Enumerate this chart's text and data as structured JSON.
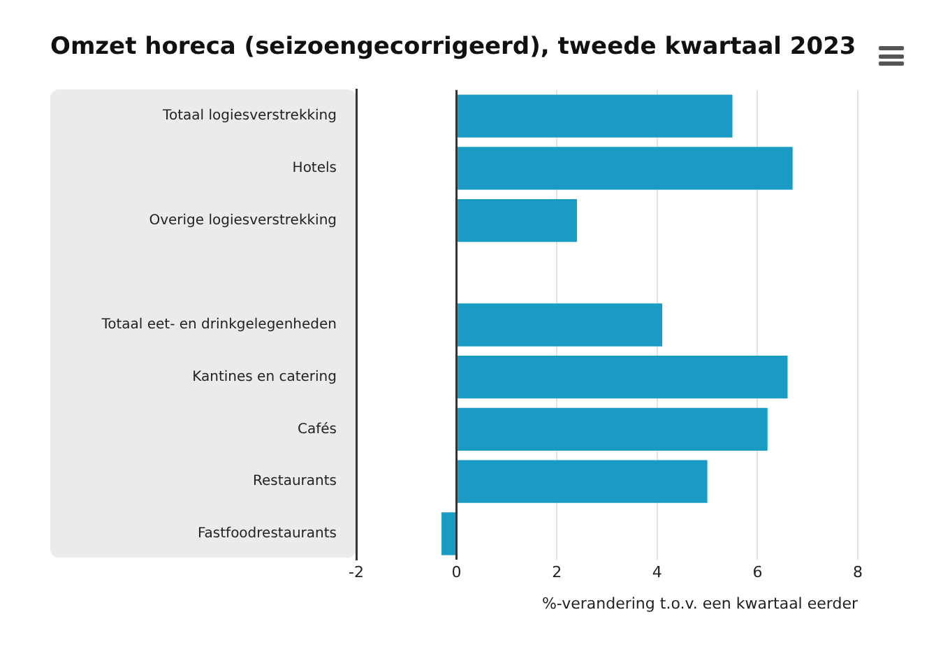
{
  "chart_data": {
    "type": "bar",
    "orientation": "horizontal",
    "title": "Omzet horeca (seizoengecorrigeerd), tweede kwartaal 2023",
    "xlabel": "%-verandering t.o.v. een kwartaal eerder",
    "categories": [
      "Totaal logiesverstrekking",
      "Hotels",
      "Overige logiesverstrekking",
      null,
      "Totaal eet- en drinkgelegenheden",
      "Kantines en catering",
      "Cafés",
      "Restaurants",
      "Fastfoodrestaurants"
    ],
    "values": [
      5.5,
      6.7,
      2.4,
      null,
      4.1,
      6.6,
      6.2,
      5.0,
      -0.3
    ],
    "color": "#1a9bc4",
    "xlim": [
      -2,
      8
    ],
    "xticks": [
      -2,
      0,
      2,
      4,
      6,
      8
    ],
    "grid": "x",
    "legend": false
  }
}
